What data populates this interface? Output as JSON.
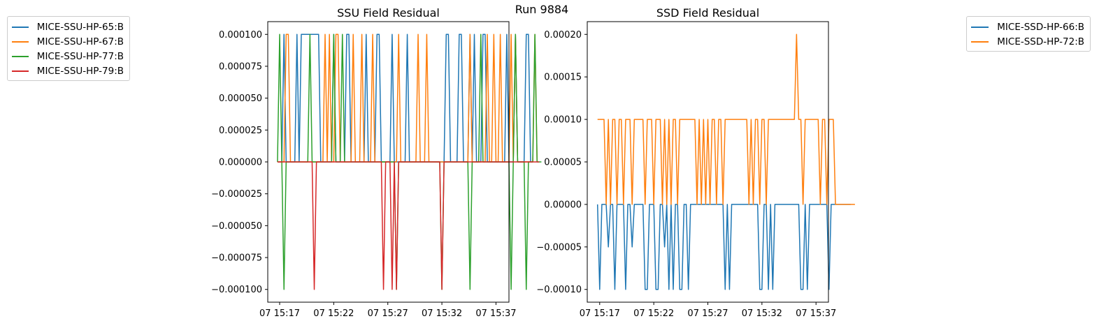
{
  "suptitle": "Run 9884",
  "chart_data": [
    {
      "type": "line",
      "title": "SSU Field Residual",
      "xlabel": "",
      "ylabel": "",
      "x_ticks": [
        "07 15:17",
        "07 15:22",
        "07 15:27",
        "07 15:32",
        "07 15:37"
      ],
      "x_tick_minutes": [
        0,
        5,
        10,
        15,
        20
      ],
      "xlim": [
        -1.1,
        21.2
      ],
      "x_start_minute": -0.2,
      "x_step_minute": 0.2,
      "y_ticks": [
        "0.000100",
        "0.000075",
        "0.000050",
        "0.000025",
        "0.000000",
        "−0.000025",
        "−0.000050",
        "−0.000075",
        "−0.000100"
      ],
      "y_tick_values": [
        0.0001,
        7.5e-05,
        5e-05,
        2.5e-05,
        0,
        -2.5e-05,
        -5e-05,
        -7.5e-05,
        -0.0001
      ],
      "ylim": [
        -0.00011,
        0.00011
      ],
      "grid": false,
      "legend_position": "outside-left",
      "series": [
        {
          "name": "MICE-SSU-HP-65:B",
          "color": "#1f77b4",
          "values": [
            0,
            0,
            0,
            0.0001,
            0,
            0,
            0,
            0,
            0,
            0.0001,
            0,
            0.0001,
            0.0001,
            0.0001,
            0.0001,
            0.0001,
            0.0001,
            0.0001,
            0.0001,
            0.0001,
            0,
            0,
            0,
            0,
            0,
            0,
            0.0001,
            0,
            0,
            0,
            0,
            0,
            0.0001,
            0.0001,
            0,
            0,
            0,
            0,
            0,
            0,
            0,
            0.0001,
            0,
            0,
            0,
            0,
            0.0001,
            0.0001,
            0,
            0,
            0,
            0,
            0,
            0.0001,
            0,
            0,
            0,
            0,
            0,
            0,
            0.0001,
            0,
            0,
            0,
            0,
            0,
            0,
            0,
            0,
            0,
            0,
            0,
            0,
            0,
            0,
            0,
            0,
            0,
            0.0001,
            0.0001,
            0,
            0,
            0,
            0,
            0.0001,
            0.0001,
            0,
            0,
            0,
            0.0001,
            0,
            0.0001,
            0,
            0,
            0,
            0.0001,
            0.0001,
            0,
            0,
            0,
            0,
            0,
            0,
            0,
            0,
            0,
            0.0001,
            0,
            0,
            0,
            0.0001,
            0,
            0,
            0,
            0,
            0.0001,
            0.0001,
            0,
            0
          ]
        },
        {
          "name": "MICE-SSU-HP-67:B",
          "color": "#ff7f0e",
          "values": [
            0,
            0,
            0,
            0,
            0.0001,
            0.0001,
            0,
            0,
            0,
            0,
            0,
            0,
            0,
            0,
            0,
            0,
            0,
            0,
            0,
            0,
            0,
            0,
            0.0001,
            0,
            0.0001,
            0,
            0,
            0.0001,
            0.0001,
            0,
            0,
            0,
            0,
            0,
            0,
            0.0001,
            0,
            0,
            0,
            0.0001,
            0,
            0,
            0,
            0,
            0.0001,
            0,
            0,
            0,
            0,
            0,
            0,
            0,
            0,
            0,
            0,
            0,
            0.0001,
            0,
            0,
            0,
            0,
            0,
            0,
            0,
            0,
            0.0001,
            0,
            0,
            0,
            0.0001,
            0,
            0,
            0,
            0,
            0,
            0,
            0,
            0,
            0,
            0,
            0,
            0,
            0,
            0,
            0,
            0,
            0,
            0,
            0,
            0.0001,
            0,
            0,
            0,
            0,
            0,
            0,
            0,
            0.0001,
            0,
            0,
            0.0001,
            0,
            0,
            0.0001,
            0,
            0,
            0,
            0,
            0.0001,
            0,
            0.0001,
            0,
            0,
            0,
            0,
            0,
            0,
            0,
            0,
            0.0001,
            0
          ]
        },
        {
          "name": "MICE-SSU-HP-77:B",
          "color": "#2ca02c",
          "values": [
            0,
            0.0001,
            0,
            -0.0001,
            0,
            0,
            0,
            0,
            0,
            0,
            0,
            0,
            0,
            0,
            0,
            0.0001,
            0,
            0,
            0,
            0,
            0,
            0,
            0,
            0,
            0,
            0,
            0.0001,
            0,
            0,
            0,
            0.0001,
            0,
            0,
            0,
            0,
            0,
            0,
            0,
            0,
            0,
            0,
            0,
            0,
            0,
            0,
            0,
            0,
            0,
            0,
            0,
            0,
            0,
            0,
            0,
            0,
            -0.0001,
            0,
            0,
            0,
            0,
            0,
            0,
            0,
            0,
            0,
            0,
            0,
            0,
            0,
            0,
            0,
            0,
            0,
            0,
            0,
            0,
            -0.0001,
            0,
            0,
            0,
            0,
            0,
            0,
            0,
            0,
            0,
            0,
            0,
            0,
            -0.0001,
            0,
            0,
            0,
            0,
            0.0001,
            0,
            0,
            0,
            0,
            0,
            0,
            0,
            0,
            0,
            0,
            0,
            0,
            0,
            -0.0001,
            0,
            0.0001,
            0,
            0,
            0,
            0,
            -0.0001,
            0,
            0,
            0,
            0.0001,
            0,
            0,
            0
          ]
        },
        {
          "name": "MICE-SSU-HP-79:B",
          "color": "#d62728",
          "values": [
            0,
            0,
            0,
            0,
            0,
            0,
            0,
            0,
            0,
            0,
            0,
            0,
            0,
            0,
            0,
            0,
            0,
            -0.0001,
            0,
            0,
            0,
            0,
            0,
            0,
            0,
            0,
            0,
            0,
            0,
            0,
            0,
            0,
            0,
            0,
            0,
            0,
            0,
            0,
            0,
            0,
            0,
            0,
            0,
            0,
            0,
            0,
            0,
            0,
            0,
            -0.0001,
            0,
            0,
            0,
            -0.0001,
            0,
            -0.0001,
            0,
            0,
            0,
            0,
            0,
            0,
            0,
            0,
            0,
            0,
            0,
            0,
            0,
            0,
            0,
            0,
            0,
            0,
            0,
            0,
            -0.0001,
            0,
            0,
            0,
            0,
            0,
            0,
            0,
            0,
            0,
            0,
            0,
            0,
            0,
            0,
            0,
            0,
            0,
            0,
            0,
            0,
            0,
            0,
            0,
            0,
            0,
            0,
            0,
            0,
            0,
            0,
            0,
            0,
            0,
            0,
            0,
            0,
            0,
            0,
            0,
            0,
            0,
            0,
            0,
            0,
            0
          ]
        }
      ]
    },
    {
      "type": "line",
      "title": "SSD Field Residual",
      "xlabel": "",
      "ylabel": "",
      "x_ticks": [
        "07 15:17",
        "07 15:22",
        "07 15:27",
        "07 15:32",
        "07 15:37"
      ],
      "x_tick_minutes": [
        0,
        5,
        10,
        15,
        20
      ],
      "xlim": [
        -1.15,
        21.15
      ],
      "x_start_minute": -0.2,
      "x_step_minute": 0.2,
      "y_ticks": [
        "0.00020",
        "0.00015",
        "0.00010",
        "0.00005",
        "0.00000",
        "−0.00005",
        "−0.00010"
      ],
      "y_tick_values": [
        0.0002,
        0.00015,
        0.0001,
        5e-05,
        0,
        -5e-05,
        -0.0001
      ],
      "ylim": [
        -0.000115,
        0.000215
      ],
      "grid": false,
      "legend_position": "outside-right",
      "series": [
        {
          "name": "MICE-SSD-HP-66:B",
          "color": "#1f77b4",
          "values": [
            0,
            -0.0001,
            0,
            0,
            0,
            -5e-05,
            0,
            0,
            -0.0001,
            0,
            0,
            0,
            0,
            -0.0001,
            0,
            0,
            -5e-05,
            0,
            0,
            0,
            0,
            0,
            -0.0001,
            -0.0001,
            0,
            0,
            0,
            -0.0001,
            -0.0001,
            0,
            0,
            -5e-05,
            0,
            -0.0001,
            0,
            -0.0001,
            0,
            0,
            -0.0001,
            -0.0001,
            0,
            0,
            -0.0001,
            0,
            0,
            0,
            0,
            0,
            0,
            0,
            0,
            0,
            0,
            0,
            0,
            0,
            0,
            0,
            0,
            -0.0001,
            0,
            -0.0001,
            0,
            0,
            0,
            0,
            0,
            0,
            0,
            0,
            0,
            0,
            0,
            0,
            0,
            -0.0001,
            -0.0001,
            0,
            0,
            -0.0001,
            0,
            -0.0001,
            0,
            0,
            0,
            0,
            0,
            0,
            0,
            0,
            0,
            0,
            0,
            0,
            -0.0001,
            -0.0001,
            0,
            -0.0001,
            0,
            0,
            0,
            0,
            0,
            0,
            0,
            0,
            0,
            -0.0001,
            0,
            0,
            0,
            0,
            0,
            0,
            0,
            0,
            0,
            0
          ]
        },
        {
          "name": "MICE-SSD-HP-72:B",
          "color": "#ff7f0e",
          "values": [
            0.0001,
            0.0001,
            0.0001,
            0.0001,
            0,
            0.0001,
            0,
            0.0001,
            0.0001,
            0,
            0.0001,
            0.0001,
            0,
            0.0001,
            0.0001,
            0.0001,
            0,
            0.0001,
            0.0001,
            0.0001,
            0.0001,
            0.0001,
            0,
            0.0001,
            0.0001,
            0.0001,
            0,
            0.0001,
            0.0001,
            0.0001,
            0,
            0.0001,
            0,
            0.0001,
            0,
            0.0001,
            0.0001,
            0,
            0.0001,
            0.0001,
            0.0001,
            0.0001,
            0.0001,
            0.0001,
            0.0001,
            0.0001,
            0,
            0.0001,
            0,
            0.0001,
            0,
            0.0001,
            0,
            0.0001,
            0.0001,
            0,
            0.0001,
            0.0001,
            0,
            0.0001,
            0.0001,
            0.0001,
            0.0001,
            0.0001,
            0.0001,
            0.0001,
            0.0001,
            0.0001,
            0.0001,
            0.0001,
            0,
            0.0001,
            0,
            0.0001,
            0.0001,
            0,
            0.0001,
            0.0001,
            0,
            0.0001,
            0.0001,
            0.0001,
            0.0001,
            0.0001,
            0.0001,
            0.0001,
            0.0001,
            0.0001,
            0.0001,
            0.0001,
            0.0001,
            0.0001,
            0.0002,
            0.0001,
            0.0001,
            0,
            0.0001,
            0.0001,
            0.0001,
            0.0001,
            0.0001,
            0.0001,
            0.0001,
            0,
            0.0001,
            0.0001,
            0,
            0.0001,
            0.0001,
            0.0001,
            0,
            0,
            0,
            0,
            0,
            0,
            0,
            0,
            0,
            0
          ]
        }
      ]
    }
  ]
}
